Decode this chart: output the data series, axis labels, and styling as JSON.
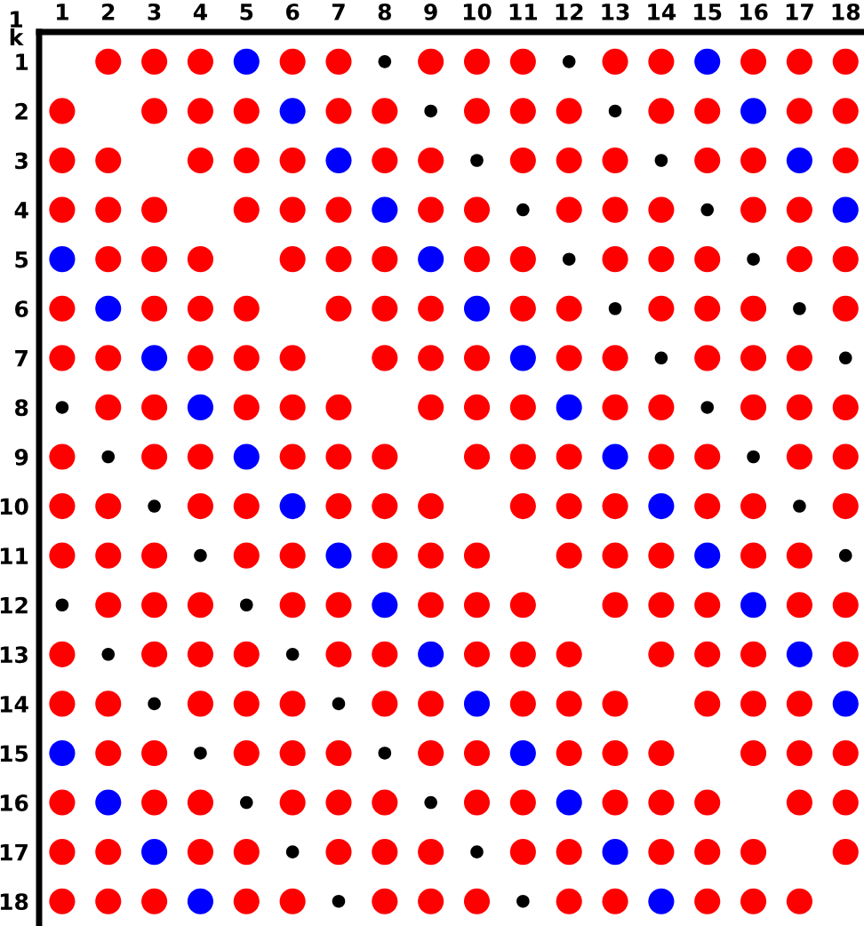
{
  "chart_data": {
    "type": "bubble",
    "xlabel": "1",
    "ylabel": "k",
    "xlim": [
      0.5,
      18.4
    ],
    "ylim": [
      18.5,
      0.4
    ],
    "xticks": [
      1,
      2,
      3,
      4,
      5,
      6,
      7,
      8,
      9,
      10,
      11,
      12,
      13,
      14,
      15,
      16,
      17,
      18
    ],
    "yticks": [
      1,
      2,
      3,
      4,
      5,
      6,
      7,
      8,
      9,
      10,
      11,
      12,
      13,
      14,
      15,
      16,
      17,
      18
    ],
    "marker": "circle",
    "series": [
      {
        "color": "#ff0000",
        "x": [
          2,
          3,
          4,
          6,
          7,
          9,
          10,
          11,
          13,
          14,
          16,
          17,
          18,
          1,
          3,
          4,
          5,
          7,
          8,
          10,
          11,
          12,
          14,
          15,
          17,
          18,
          1,
          2,
          4,
          5,
          6,
          8,
          9,
          11,
          12,
          13,
          15,
          16,
          18,
          1,
          2,
          3,
          5,
          6,
          7,
          9,
          10,
          12,
          13,
          14,
          16,
          17,
          2,
          3,
          4,
          6,
          7,
          8,
          10,
          11,
          13,
          14,
          15,
          17,
          18,
          1,
          3,
          4,
          5,
          7,
          8,
          9,
          11,
          12,
          14,
          15,
          16,
          18,
          1,
          2,
          4,
          5,
          6,
          8,
          9,
          10,
          12,
          13,
          15,
          16,
          17,
          2,
          3,
          5,
          6,
          7,
          9,
          10,
          11,
          13,
          14,
          16,
          17,
          18,
          1,
          3,
          4,
          6,
          7,
          8,
          10,
          11,
          12,
          14,
          15,
          17,
          18,
          1,
          2,
          4,
          5,
          7,
          8,
          9,
          11,
          12,
          13,
          15,
          16,
          18,
          1,
          2,
          3,
          5,
          6,
          8,
          9,
          10,
          12,
          13,
          14,
          16,
          17,
          2,
          3,
          4,
          6,
          7,
          9,
          10,
          11,
          13,
          14,
          15,
          17,
          18,
          1,
          3,
          4,
          5,
          7,
          8,
          10,
          11,
          12,
          14,
          15,
          16,
          18,
          1,
          2,
          4,
          5,
          6,
          8,
          9,
          11,
          12,
          13,
          15,
          16,
          17,
          2,
          3,
          5,
          6,
          7,
          9,
          10,
          12,
          13,
          14,
          16,
          17,
          18,
          1,
          3,
          4,
          6,
          7,
          8,
          10,
          11,
          13,
          14,
          15,
          17,
          18,
          1,
          2,
          4,
          5,
          7,
          8,
          9,
          11,
          12,
          14,
          15,
          16,
          18,
          1,
          2,
          3,
          5,
          6,
          8,
          9,
          10,
          12,
          13,
          15,
          16,
          17
        ],
        "values": [
          1,
          1,
          1,
          1,
          1,
          1,
          1,
          1,
          1,
          1,
          1,
          1,
          1,
          2,
          2,
          2,
          2,
          2,
          2,
          2,
          2,
          2,
          2,
          2,
          2,
          2,
          3,
          3,
          3,
          3,
          3,
          3,
          3,
          3,
          3,
          3,
          3,
          3,
          3,
          4,
          4,
          4,
          4,
          4,
          4,
          4,
          4,
          4,
          4,
          4,
          4,
          4,
          5,
          5,
          5,
          5,
          5,
          5,
          5,
          5,
          5,
          5,
          5,
          5,
          5,
          6,
          6,
          6,
          6,
          6,
          6,
          6,
          6,
          6,
          6,
          6,
          6,
          6,
          7,
          7,
          7,
          7,
          7,
          7,
          7,
          7,
          7,
          7,
          7,
          7,
          7,
          8,
          8,
          8,
          8,
          8,
          8,
          8,
          8,
          8,
          8,
          8,
          8,
          8,
          9,
          9,
          9,
          9,
          9,
          9,
          9,
          9,
          9,
          9,
          9,
          9,
          9,
          10,
          10,
          10,
          10,
          10,
          10,
          10,
          10,
          10,
          10,
          10,
          10,
          10,
          11,
          11,
          11,
          11,
          11,
          11,
          11,
          11,
          11,
          11,
          11,
          11,
          11,
          12,
          12,
          12,
          12,
          12,
          12,
          12,
          12,
          12,
          12,
          12,
          12,
          12,
          13,
          13,
          13,
          13,
          13,
          13,
          13,
          13,
          13,
          13,
          13,
          13,
          13,
          14,
          14,
          14,
          14,
          14,
          14,
          14,
          14,
          14,
          14,
          14,
          14,
          14,
          15,
          15,
          15,
          15,
          15,
          15,
          15,
          15,
          15,
          15,
          15,
          15,
          15,
          16,
          16,
          16,
          16,
          16,
          16,
          16,
          16,
          16,
          16,
          16,
          16,
          16,
          17,
          17,
          17,
          17,
          17,
          17,
          17,
          17,
          17,
          17,
          17,
          17,
          17,
          18,
          18,
          18,
          18,
          18,
          18,
          18,
          18,
          18,
          18,
          18,
          18,
          18
        ],
        "sizes": [
          1,
          1,
          1,
          1,
          1,
          1,
          1,
          1,
          1,
          1,
          1,
          1,
          1,
          1,
          1,
          1,
          1,
          1,
          1,
          1,
          1,
          1,
          1,
          1,
          1,
          1,
          1,
          1,
          1,
          1,
          1,
          1,
          1,
          1,
          1,
          1,
          1,
          1,
          1,
          1,
          1,
          1,
          1,
          1,
          1,
          1,
          1,
          1,
          1,
          1,
          1,
          1,
          1,
          1,
          1,
          1,
          1,
          1,
          1,
          1,
          1,
          1,
          1,
          1,
          1,
          1,
          1,
          1,
          1,
          1,
          1,
          1,
          1,
          1,
          1,
          1,
          1,
          1,
          1,
          1,
          1,
          1,
          1,
          1,
          1,
          1,
          1,
          1,
          1,
          1,
          1,
          1,
          1,
          1,
          1,
          1,
          1,
          1,
          1,
          1,
          1,
          1,
          1,
          1,
          1,
          1,
          1,
          1,
          1,
          1,
          1,
          1,
          1,
          1,
          1,
          1,
          1,
          1,
          1,
          1,
          1,
          1,
          1,
          1,
          1,
          1,
          1,
          1,
          1,
          1,
          1,
          1,
          1,
          1,
          1,
          1,
          1,
          1,
          1,
          1,
          1,
          1,
          1,
          1,
          1,
          1,
          1,
          1,
          1,
          1,
          1,
          1,
          1,
          1,
          1,
          1,
          1,
          1,
          1,
          1,
          1,
          1,
          1,
          1,
          1,
          1,
          1,
          1,
          1,
          1,
          1,
          1,
          1,
          1,
          1,
          1,
          1,
          1,
          1,
          1,
          1,
          1,
          1,
          1,
          1,
          1,
          1,
          1,
          1,
          1,
          1,
          1,
          1,
          1,
          1,
          1,
          1,
          1,
          1,
          1,
          1,
          1,
          1,
          1,
          1,
          1,
          1,
          1,
          1,
          1,
          1,
          1,
          1,
          1,
          1,
          1,
          1,
          1,
          1,
          1,
          1,
          1,
          1,
          1,
          1,
          1,
          1,
          1,
          1,
          1,
          1,
          1,
          1,
          1
        ]
      },
      {
        "color": "#0000ff",
        "x": [
          5,
          15,
          6,
          16,
          7,
          17,
          8,
          18,
          1,
          9,
          2,
          10,
          3,
          11,
          4,
          12,
          5,
          13,
          6,
          14,
          7,
          15,
          8,
          16,
          9,
          17,
          10,
          18,
          1,
          11,
          2,
          12,
          3,
          13,
          4,
          14
        ],
        "values": [
          1,
          1,
          2,
          2,
          3,
          3,
          4,
          4,
          5,
          5,
          6,
          6,
          7,
          7,
          8,
          8,
          9,
          9,
          10,
          10,
          11,
          11,
          12,
          12,
          13,
          13,
          14,
          14,
          15,
          15,
          16,
          16,
          17,
          17,
          18,
          18
        ],
        "sizes": [
          1,
          1,
          1,
          1,
          1,
          1,
          1,
          1,
          1,
          1,
          1,
          1,
          1,
          1,
          1,
          1,
          1,
          1,
          1,
          1,
          1,
          1,
          1,
          1,
          1,
          1,
          1,
          1,
          1,
          1,
          1,
          1,
          1,
          1,
          1,
          1
        ]
      },
      {
        "color": "#000000",
        "x": [
          8,
          12,
          9,
          13,
          10,
          14,
          11,
          15,
          12,
          16,
          13,
          17,
          14,
          18,
          1,
          15,
          2,
          16,
          3,
          17,
          4,
          18,
          1,
          5,
          2,
          6,
          3,
          7,
          4,
          8,
          5,
          9,
          6,
          10,
          7,
          11
        ],
        "values": [
          1,
          1,
          2,
          2,
          3,
          3,
          4,
          4,
          5,
          5,
          6,
          6,
          7,
          7,
          8,
          8,
          9,
          9,
          10,
          10,
          11,
          11,
          12,
          12,
          13,
          13,
          14,
          14,
          15,
          15,
          16,
          16,
          17,
          17,
          18,
          18
        ],
        "sizes": [
          0.25,
          0.25,
          0.25,
          0.25,
          0.25,
          0.25,
          0.25,
          0.25,
          0.25,
          0.25,
          0.25,
          0.25,
          0.25,
          0.25,
          0.25,
          0.25,
          0.25,
          0.25,
          0.25,
          0.25,
          0.25,
          0.25,
          0.25,
          0.25,
          0.25,
          0.25,
          0.25,
          0.25,
          0.25,
          0.25,
          0.25,
          0.25,
          0.25,
          0.25,
          0.25,
          0.25
        ]
      }
    ]
  }
}
